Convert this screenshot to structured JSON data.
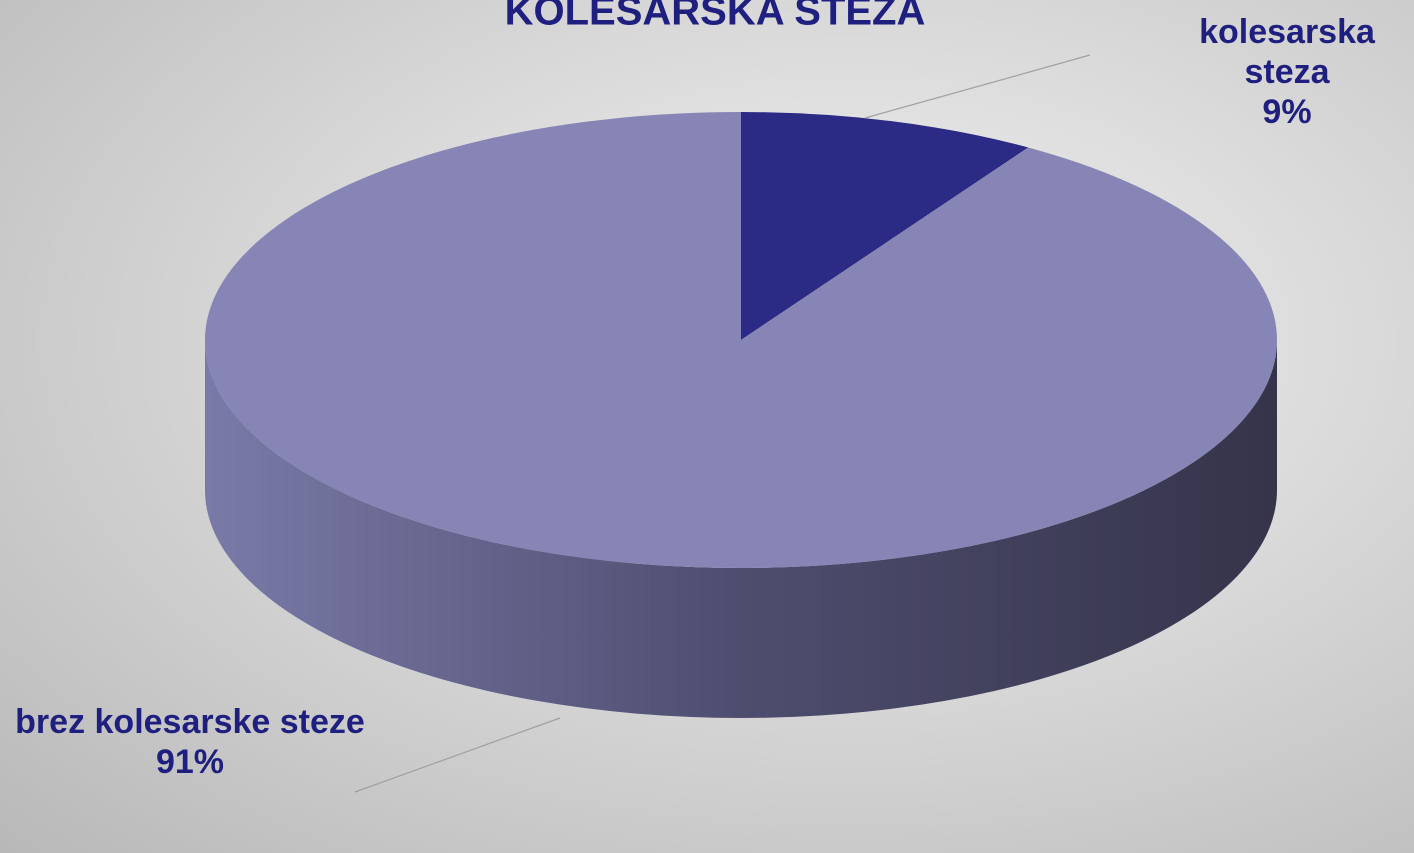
{
  "chart_data": {
    "type": "pie",
    "title": "KOLESARSKA STEZA",
    "categories": [
      "kolesarska steza",
      "brez kolesarske steze"
    ],
    "values": [
      9,
      91
    ],
    "value_labels": [
      "9%",
      "91%"
    ],
    "colors": [
      "#2b2a85",
      "#8685b5"
    ]
  }
}
